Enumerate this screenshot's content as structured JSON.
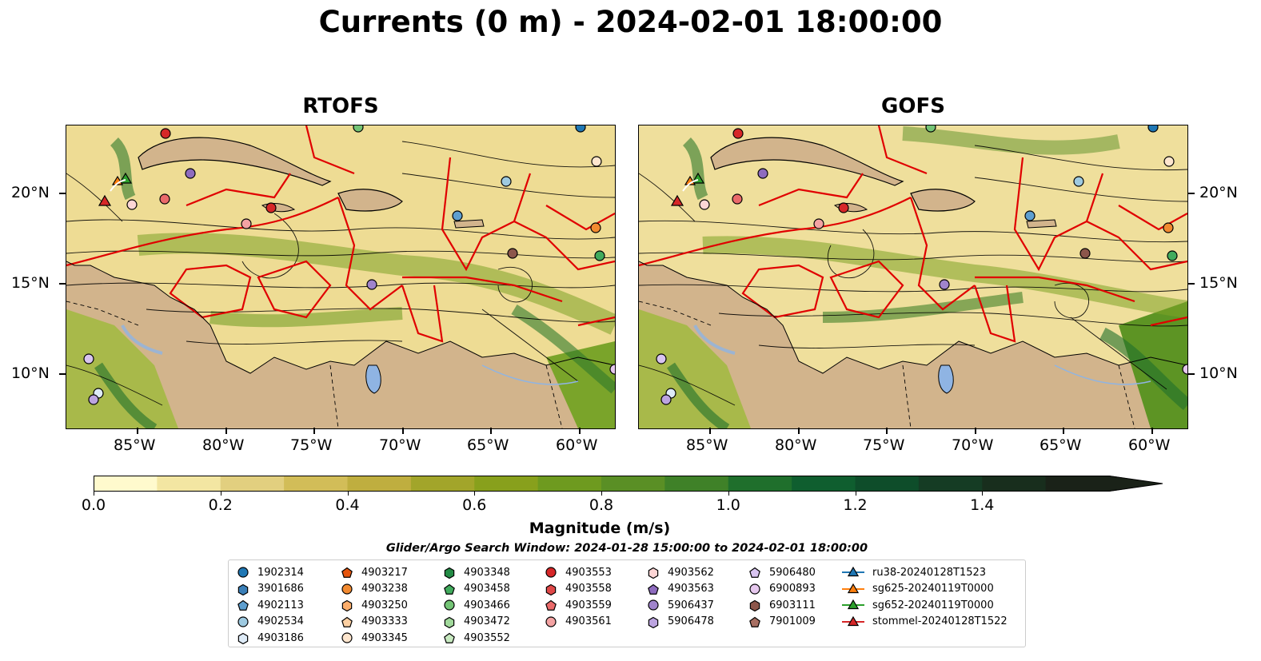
{
  "title": "Currents (0 m) - 2024-02-01 18:00:00",
  "panels": [
    {
      "title": "RTOFS"
    },
    {
      "title": "GOFS"
    }
  ],
  "lon_ticks": [
    "85°W",
    "80°W",
    "75°W",
    "70°W",
    "65°W",
    "60°W"
  ],
  "lat_ticks": [
    "20°N",
    "15°N",
    "10°N"
  ],
  "colorbar": {
    "ticks": [
      "0.0",
      "0.2",
      "0.4",
      "0.6",
      "0.8",
      "1.0",
      "1.2",
      "1.4"
    ],
    "label": "Magnitude (m/s)",
    "colors": [
      "#fffacd",
      "#f3e6a2",
      "#e2cf7f",
      "#d2bd58",
      "#bfae3f",
      "#a2a52a",
      "#88a01c",
      "#6e9a1f",
      "#5a8f25",
      "#3f8128",
      "#1f6f2c",
      "#0f5e2f",
      "#0e4d2a",
      "#153c24",
      "#182e1d",
      "#1a2218"
    ],
    "extend": "max"
  },
  "search_window": "Glider/Argo Search Window: 2024-01-28 15:00:00 to 2024-02-01 18:00:00",
  "legend": {
    "columns": [
      [
        {
          "label": "1902314",
          "marker": "circle",
          "color": "#1f77b4"
        },
        {
          "label": "3901686",
          "marker": "hexagon",
          "color": "#3a7fb8"
        },
        {
          "label": "4902113",
          "marker": "pentagon",
          "color": "#5e9fd0"
        },
        {
          "label": "4902534",
          "marker": "circle",
          "color": "#9ecae1"
        },
        {
          "label": "4903186",
          "marker": "hexagon",
          "color": "#deebf7"
        }
      ],
      [
        {
          "label": "4903217",
          "marker": "pentagon",
          "color": "#e6550d"
        },
        {
          "label": "4903238",
          "marker": "circle",
          "color": "#f28a30"
        },
        {
          "label": "4903250",
          "marker": "hexagon",
          "color": "#fdae6b"
        },
        {
          "label": "4903333",
          "marker": "pentagon",
          "color": "#fdd0a2"
        },
        {
          "label": "4903345",
          "marker": "circle",
          "color": "#fee6ce"
        }
      ],
      [
        {
          "label": "4903348",
          "marker": "hexagon",
          "color": "#238b45"
        },
        {
          "label": "4903458",
          "marker": "pentagon",
          "color": "#41ab5d"
        },
        {
          "label": "4903466",
          "marker": "circle",
          "color": "#74c476"
        },
        {
          "label": "4903472",
          "marker": "hexagon",
          "color": "#a1d99b"
        },
        {
          "label": "4903552",
          "marker": "pentagon",
          "color": "#c7e9c0"
        }
      ],
      [
        {
          "label": "4903553",
          "marker": "circle",
          "color": "#d62728"
        },
        {
          "label": "4903558",
          "marker": "hexagon",
          "color": "#e04848"
        },
        {
          "label": "4903559",
          "marker": "pentagon",
          "color": "#ea6a6a"
        },
        {
          "label": "4903561",
          "marker": "circle",
          "color": "#f4a3a3"
        }
      ],
      [
        {
          "label": "4903562",
          "marker": "hexagon",
          "color": "#fcd5d5"
        },
        {
          "label": "4903563",
          "marker": "pentagon",
          "color": "#8e6bbf"
        },
        {
          "label": "5906437",
          "marker": "circle",
          "color": "#a084cc"
        },
        {
          "label": "5906478",
          "marker": "hexagon",
          "color": "#bca4e0"
        }
      ],
      [
        {
          "label": "5906480",
          "marker": "pentagon",
          "color": "#d8c4f0"
        },
        {
          "label": "6900893",
          "marker": "circle",
          "color": "#e6c8ee"
        },
        {
          "label": "6903111",
          "marker": "hexagon",
          "color": "#8c564b"
        },
        {
          "label": "7901009",
          "marker": "pentagon",
          "color": "#a86f62"
        }
      ],
      [
        {
          "label": "ru38-20240128T1523",
          "marker": "triangle",
          "color": "#1f77b4"
        },
        {
          "label": "sg625-20240119T0000",
          "marker": "triangle",
          "color": "#ff7f0e"
        },
        {
          "label": "sg652-20240119T0000",
          "marker": "triangle",
          "color": "#2ca02c"
        },
        {
          "label": "stommel-20240128T1522",
          "marker": "triangle",
          "color": "#d62728"
        }
      ]
    ]
  }
}
